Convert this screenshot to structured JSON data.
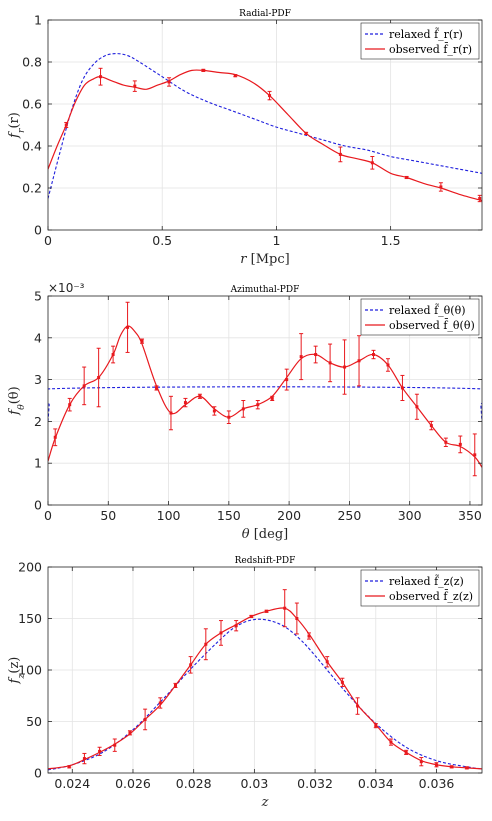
{
  "chart_data": [
    {
      "type": "line",
      "title": "Radial-PDF",
      "xlabel": "r [Mpc]",
      "ylabel": "f_r(r)",
      "xlim": [
        0,
        1.9
      ],
      "ylim": [
        0,
        1
      ],
      "xticks": [
        0,
        0.5,
        1,
        1.5
      ],
      "xtick_labels": [
        "0",
        "0.5",
        "1",
        "1.5"
      ],
      "yticks": [
        0,
        0.2,
        0.4,
        0.6,
        0.8,
        1
      ],
      "ytick_labels": [
        "0",
        "0.2",
        "0.4",
        "0.6",
        "0.8",
        "1"
      ],
      "grid": true,
      "legend_position": "top-right",
      "series": [
        {
          "name": "relaxed f̃_r(r)",
          "style": "dashed",
          "color": "#1f1fdd",
          "x": [
            0,
            0.05,
            0.1,
            0.15,
            0.2,
            0.25,
            0.3,
            0.35,
            0.4,
            0.5,
            0.6,
            0.7,
            0.8,
            0.9,
            1.0,
            1.1,
            1.2,
            1.3,
            1.4,
            1.5,
            1.6,
            1.7,
            1.8,
            1.9
          ],
          "y": [
            0.15,
            0.36,
            0.56,
            0.71,
            0.79,
            0.83,
            0.84,
            0.83,
            0.8,
            0.73,
            0.66,
            0.61,
            0.57,
            0.53,
            0.49,
            0.46,
            0.43,
            0.4,
            0.38,
            0.35,
            0.33,
            0.31,
            0.29,
            0.27
          ]
        },
        {
          "name": "observed f̄_r(r)",
          "style": "solid",
          "color": "#e8191e",
          "x": [
            0,
            0.04,
            0.08,
            0.12,
            0.16,
            0.2,
            0.23,
            0.28,
            0.33,
            0.38,
            0.43,
            0.48,
            0.53,
            0.58,
            0.63,
            0.68,
            0.75,
            0.82,
            0.9,
            0.97,
            1.05,
            1.13,
            1.2,
            1.28,
            1.35,
            1.42,
            1.5,
            1.57,
            1.65,
            1.72,
            1.8,
            1.9
          ],
          "y": [
            0.29,
            0.4,
            0.5,
            0.61,
            0.69,
            0.72,
            0.73,
            0.71,
            0.69,
            0.68,
            0.67,
            0.69,
            0.71,
            0.74,
            0.76,
            0.76,
            0.75,
            0.74,
            0.7,
            0.64,
            0.55,
            0.46,
            0.41,
            0.36,
            0.34,
            0.32,
            0.27,
            0.25,
            0.22,
            0.2,
            0.17,
            0.14
          ]
        }
      ],
      "errorbars": {
        "x": [
          0.08,
          0.23,
          0.38,
          0.53,
          0.68,
          0.82,
          0.97,
          1.13,
          1.28,
          1.42,
          1.57,
          1.72,
          1.89
        ],
        "y": [
          0.5,
          0.73,
          0.685,
          0.705,
          0.76,
          0.735,
          0.64,
          0.46,
          0.36,
          0.32,
          0.25,
          0.205,
          0.15
        ],
        "err": [
          0.012,
          0.04,
          0.025,
          0.02,
          0.005,
          0.005,
          0.02,
          0.005,
          0.035,
          0.03,
          0.005,
          0.02,
          0.015
        ]
      }
    },
    {
      "type": "line",
      "title": "Azimuthal-PDF",
      "xlabel": "θ [deg]",
      "ylabel": "f_θ(θ)",
      "multiplier": "×10⁻³",
      "xlim": [
        0,
        360
      ],
      "ylim": [
        0,
        5
      ],
      "xticks": [
        0,
        50,
        100,
        150,
        200,
        250,
        300,
        350
      ],
      "xtick_labels": [
        "0",
        "50",
        "100",
        "150",
        "200",
        "250",
        "300",
        "350"
      ],
      "yticks": [
        0,
        1,
        2,
        3,
        4,
        5
      ],
      "ytick_labels": [
        "0",
        "1",
        "2",
        "3",
        "4",
        "5"
      ],
      "grid": true,
      "legend_position": "top-right",
      "series": [
        {
          "name": "relaxed f̃_θ(θ)",
          "style": "dashed",
          "color": "#1f1fdd",
          "x": [
            0,
            1,
            2,
            358,
            359,
            360
          ],
          "y": [
            2.0,
            2.4,
            2.78,
            2.78,
            2.4,
            2.0
          ]
        },
        {
          "name": "observed f̄_θ(θ)",
          "style": "solid",
          "color": "#e8191e",
          "x": [
            0,
            6,
            18,
            30,
            42,
            54,
            60,
            66,
            72,
            78,
            90,
            102,
            114,
            126,
            138,
            150,
            162,
            174,
            186,
            198,
            210,
            222,
            234,
            246,
            258,
            270,
            282,
            294,
            306,
            318,
            330,
            342,
            354,
            360
          ],
          "y": [
            1.05,
            1.6,
            2.4,
            2.85,
            3.05,
            3.6,
            4.05,
            4.28,
            4.15,
            3.85,
            2.85,
            2.2,
            2.4,
            2.6,
            2.3,
            2.1,
            2.3,
            2.4,
            2.6,
            3.05,
            3.5,
            3.6,
            3.4,
            3.3,
            3.45,
            3.6,
            3.35,
            2.8,
            2.35,
            1.9,
            1.5,
            1.4,
            1.15,
            0.9
          ]
        }
      ],
      "errorbars": {
        "x": [
          6,
          18,
          30,
          42,
          54,
          66,
          78,
          90,
          102,
          114,
          126,
          138,
          150,
          162,
          174,
          186,
          198,
          210,
          222,
          234,
          246,
          258,
          270,
          282,
          294,
          306,
          318,
          330,
          342,
          354
        ],
        "y": [
          1.62,
          2.4,
          2.85,
          3.05,
          3.6,
          4.25,
          3.92,
          2.8,
          2.2,
          2.45,
          2.6,
          2.25,
          2.1,
          2.3,
          2.4,
          2.55,
          3.0,
          3.55,
          3.6,
          3.4,
          3.3,
          3.45,
          3.6,
          3.35,
          2.8,
          2.35,
          1.9,
          1.5,
          1.45,
          1.2
        ],
        "err": [
          0.2,
          0.15,
          0.45,
          0.7,
          0.2,
          0.6,
          0.05,
          0.05,
          0.4,
          0.1,
          0.05,
          0.1,
          0.15,
          0.2,
          0.1,
          0.05,
          0.25,
          0.55,
          0.2,
          0.45,
          0.65,
          0.6,
          0.1,
          0.15,
          0.3,
          0.3,
          0.1,
          0.1,
          0.2,
          0.5
        ]
      }
    },
    {
      "type": "line",
      "title": "Redshift-PDF",
      "xlabel": "z",
      "ylabel": "f_z(z)",
      "xlim": [
        0.0232,
        0.0375
      ],
      "ylim": [
        0,
        200
      ],
      "xticks": [
        0.024,
        0.026,
        0.028,
        0.03,
        0.032,
        0.034,
        0.036
      ],
      "xtick_labels": [
        "0.024",
        "0.026",
        "0.028",
        "0.03",
        "0.032",
        "0.034",
        "0.036"
      ],
      "yticks": [
        0,
        50,
        100,
        150,
        200
      ],
      "ytick_labels": [
        "0",
        "50",
        "100",
        "150",
        "200"
      ],
      "grid": true,
      "legend_position": "top-right",
      "series": [
        {
          "name": "relaxed f̃_z(z)",
          "style": "dashed",
          "color": "#1f1fdd",
          "x": [
            0.0232,
            0.024,
            0.025,
            0.026,
            0.027,
            0.028,
            0.029,
            0.0295,
            0.03,
            0.0305,
            0.031,
            0.0315,
            0.032,
            0.033,
            0.034,
            0.035,
            0.036,
            0.037,
            0.0375
          ],
          "y": [
            3,
            8,
            20,
            42,
            72,
            104,
            133,
            144,
            149,
            148,
            142,
            130,
            114,
            79,
            48,
            25,
            12,
            6,
            4
          ]
        },
        {
          "name": "observed f̄_z(z)",
          "style": "solid",
          "color": "#e8191e",
          "x": [
            0.0232,
            0.0239,
            0.0244,
            0.0249,
            0.0254,
            0.0259,
            0.0264,
            0.0269,
            0.0274,
            0.0279,
            0.0284,
            0.0289,
            0.0294,
            0.0299,
            0.0304,
            0.031,
            0.0314,
            0.0318,
            0.0324,
            0.0329,
            0.0334,
            0.034,
            0.0345,
            0.035,
            0.0355,
            0.036,
            0.0365,
            0.037,
            0.0375
          ],
          "y": [
            4,
            7,
            13,
            20,
            28,
            38,
            52,
            66,
            85,
            105,
            125,
            136,
            144,
            152,
            157,
            160,
            150,
            135,
            108,
            88,
            66,
            47,
            30,
            20,
            12,
            8,
            6,
            5,
            4
          ]
        }
      ],
      "errorbars": {
        "x": [
          0.0239,
          0.0244,
          0.0249,
          0.0254,
          0.0259,
          0.0264,
          0.0269,
          0.0274,
          0.0279,
          0.0284,
          0.0289,
          0.0294,
          0.0299,
          0.0304,
          0.031,
          0.0314,
          0.0318,
          0.0324,
          0.0329,
          0.0334,
          0.034,
          0.0345,
          0.035,
          0.0355,
          0.036,
          0.0365,
          0.037
        ],
        "y": [
          6,
          14,
          21,
          27,
          39,
          52,
          68,
          85,
          105,
          125,
          136,
          143,
          152,
          157,
          160,
          150,
          133,
          108,
          88,
          65,
          46,
          30,
          20,
          11,
          8,
          6,
          5
        ],
        "err": [
          1,
          5,
          4,
          6,
          2,
          10,
          5,
          2,
          8,
          15,
          12,
          5,
          1,
          1,
          18,
          15,
          3,
          5,
          4,
          8,
          2,
          3,
          2,
          4,
          2,
          1,
          1
        ]
      }
    }
  ]
}
